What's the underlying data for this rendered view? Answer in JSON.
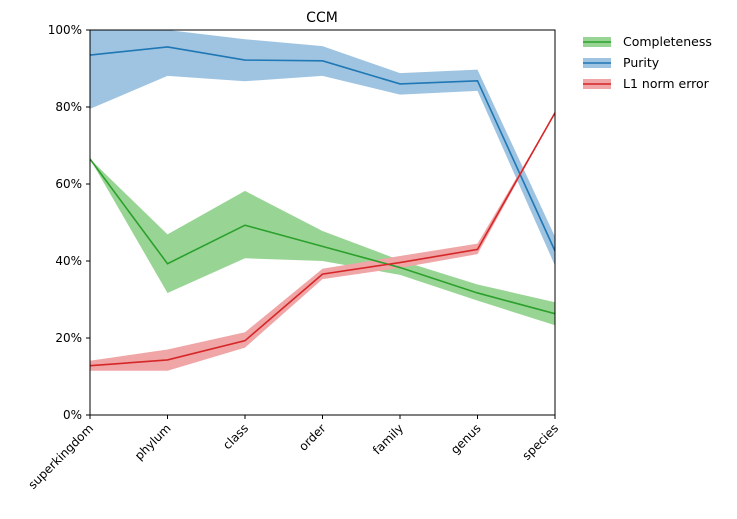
{
  "chart_data": {
    "type": "line",
    "title": "CCM",
    "xlabel": "",
    "ylabel": "",
    "categories": [
      "superkingdom",
      "phylum",
      "class",
      "order",
      "family",
      "genus",
      "species"
    ],
    "ylim": [
      0,
      100
    ],
    "yticks": [
      "0%",
      "20%",
      "40%",
      "60%",
      "80%",
      "100%"
    ],
    "yticks_values": [
      0,
      20,
      40,
      60,
      80,
      100
    ],
    "grid": false,
    "legend_position": "outside-top-right",
    "series": [
      {
        "name": "Completeness",
        "color": "#2ca02c",
        "band_color": "#98d594",
        "values": [
          66.5,
          39.3,
          49.3,
          43.8,
          38.3,
          31.7,
          26.3
        ],
        "lower": [
          66.5,
          31.7,
          40.7,
          40.0,
          36.4,
          29.7,
          23.3
        ],
        "upper": [
          66.5,
          46.9,
          58.2,
          47.8,
          40.2,
          33.9,
          29.3
        ]
      },
      {
        "name": "Purity",
        "color": "#1f77b4",
        "band_color": "#9ec4e2",
        "values": [
          93.5,
          95.6,
          92.2,
          92.0,
          86.0,
          86.8,
          42.6
        ],
        "lower": [
          79.5,
          88.1,
          86.7,
          88.1,
          83.2,
          84.2,
          38.8
        ],
        "upper": [
          100,
          100,
          97.6,
          95.8,
          88.8,
          89.7,
          46.3
        ]
      },
      {
        "name": "L1 norm error",
        "color": "#d62728",
        "band_color": "#f0a5a6",
        "values": [
          12.8,
          14.3,
          19.3,
          36.6,
          39.6,
          43.0,
          78.5
        ],
        "lower": [
          11.5,
          11.5,
          17.5,
          35.3,
          38.2,
          41.8,
          78.5
        ],
        "upper": [
          14.1,
          17.0,
          21.5,
          38.0,
          41.3,
          44.5,
          78.5
        ]
      }
    ]
  }
}
